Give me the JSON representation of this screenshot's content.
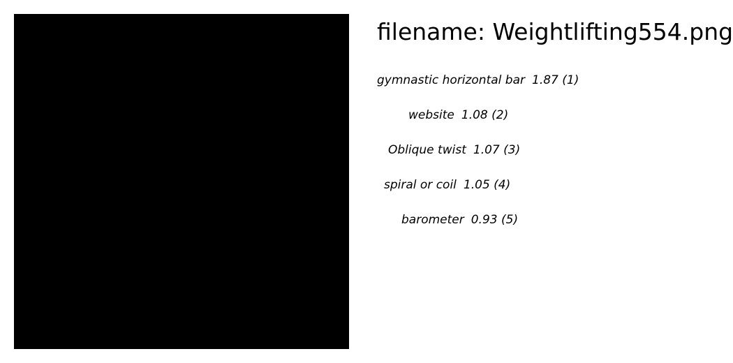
{
  "image": {
    "fill": "#000000"
  },
  "title": {
    "text": "filename: Weightlifting554.png"
  },
  "predictions": [
    {
      "label": "gymnastic horizontal bar",
      "score": "1.87",
      "rank": "(1)"
    },
    {
      "label": "website",
      "score": "1.08",
      "rank": "(2)"
    },
    {
      "label": "Oblique twist",
      "score": "1.07",
      "rank": "(3)"
    },
    {
      "label": "spiral or coil",
      "score": "1.05",
      "rank": "(4)"
    },
    {
      "label": "barometer",
      "score": "0.93",
      "rank": "(5)"
    }
  ]
}
